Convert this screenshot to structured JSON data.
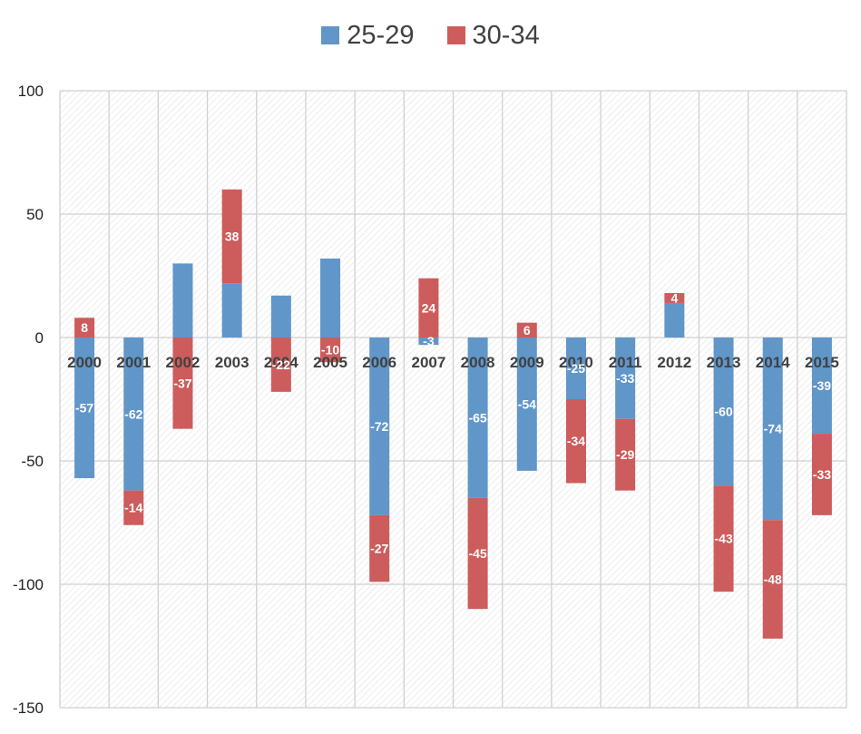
{
  "chart_data": {
    "type": "bar",
    "stacked": true,
    "categories": [
      "2000",
      "2001",
      "2002",
      "2003",
      "2004",
      "2005",
      "2006",
      "2007",
      "2008",
      "2009",
      "2010",
      "2011",
      "2012",
      "2013",
      "2014",
      "2015"
    ],
    "series": [
      {
        "name": "25-29",
        "color": "#6196c9",
        "values": [
          -57,
          -62,
          30,
          22,
          17,
          32,
          -72,
          -3,
          -65,
          -54,
          -25,
          -33,
          14,
          -60,
          -74,
          -39
        ],
        "labels": [
          "-57",
          "-62",
          "",
          "",
          "",
          "",
          "-72",
          "-3",
          "-65",
          "-54",
          "-25",
          "-33",
          "",
          "-60",
          "-74",
          "-39"
        ]
      },
      {
        "name": "30-34",
        "color": "#cd5c5c",
        "values": [
          8,
          -14,
          -37,
          38,
          -22,
          -10,
          -27,
          24,
          -45,
          6,
          -34,
          -29,
          4,
          -43,
          -48,
          -33
        ],
        "labels": [
          "8",
          "-14",
          "-37",
          "38",
          "-22",
          "-10",
          "-27",
          "24",
          "-45",
          "6",
          "-34",
          "-29",
          "4",
          "-43",
          "-48",
          "-33"
        ]
      }
    ],
    "ylim": [
      -150,
      100
    ],
    "yticks": [
      100,
      50,
      0,
      -50,
      -100,
      -150
    ],
    "ytick_labels": [
      "100",
      "50",
      "0",
      "-50",
      "-100",
      "-150"
    ],
    "grid": true,
    "legend_position": "top-center",
    "title": "",
    "xlabel": "",
    "ylabel": ""
  }
}
